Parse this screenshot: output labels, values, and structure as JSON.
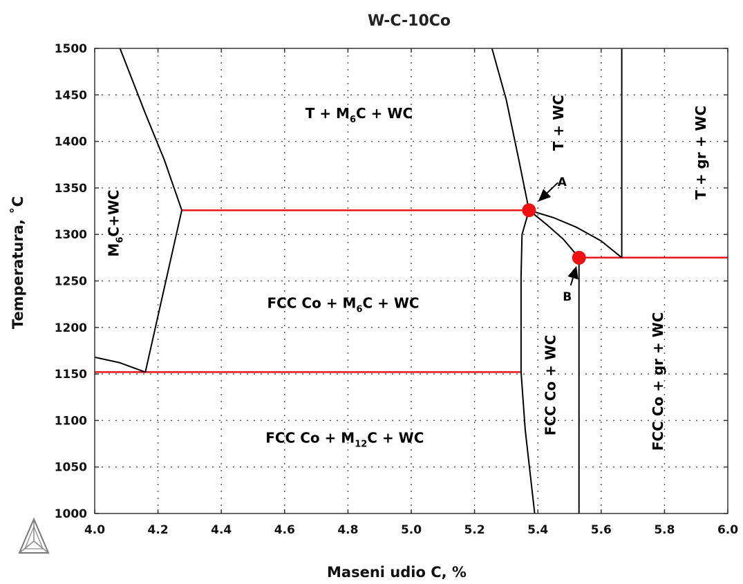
{
  "chart_data": {
    "type": "line",
    "title": "W-C-10Co",
    "xlabel": "Maseni udio C, %",
    "ylabel": "Temperatura, ˚C",
    "xlim": [
      4.0,
      6.0
    ],
    "ylim": [
      1000,
      1500
    ],
    "x_ticks": [
      "4.0",
      "4.2",
      "4.4",
      "4.6",
      "4.8",
      "5.0",
      "5.2",
      "5.4",
      "5.6",
      "5.8",
      "6.0"
    ],
    "y_ticks": [
      "1000",
      "1050",
      "1100",
      "1150",
      "1200",
      "1250",
      "1300",
      "1350",
      "1400",
      "1450",
      "1500"
    ],
    "grid": true,
    "colors": {
      "boundary": "#000000",
      "invariant": "#e8151b",
      "point": "#ee1111",
      "grid": "#555555"
    },
    "boundary_lines": [
      {
        "x": [
          4.08,
          4.16,
          4.22,
          4.275
        ],
        "y": [
          1500,
          1430,
          1380,
          1326
        ]
      },
      {
        "x": [
          4.275,
          4.16
        ],
        "y": [
          1326,
          1152
        ]
      },
      {
        "x": [
          4.0,
          4.08,
          4.16
        ],
        "y": [
          1168,
          1162,
          1152
        ]
      },
      {
        "x": [
          5.255,
          5.3,
          5.34,
          5.372
        ],
        "y": [
          1500,
          1445,
          1380,
          1326
        ]
      },
      {
        "x": [
          5.372,
          5.35,
          5.347,
          5.347
        ],
        "y": [
          1326,
          1300,
          1255,
          1152
        ]
      },
      {
        "x": [
          5.347,
          5.36,
          5.39
        ],
        "y": [
          1152,
          1090,
          1000
        ]
      },
      {
        "x": [
          5.372,
          5.43,
          5.48,
          5.53
        ],
        "y": [
          1326,
          1310,
          1295,
          1275
        ]
      },
      {
        "x": [
          5.372,
          5.45,
          5.52,
          5.6,
          5.665
        ],
        "y": [
          1326,
          1318,
          1308,
          1293,
          1275
        ]
      },
      {
        "x": [
          5.53,
          5.53
        ],
        "y": [
          1275,
          1000
        ]
      },
      {
        "x": [
          5.665,
          5.665
        ],
        "y": [
          1500,
          1275
        ]
      }
    ],
    "invariant_lines": [
      {
        "x": [
          4.275,
          5.372
        ],
        "y": [
          1326,
          1326
        ]
      },
      {
        "x": [
          4.0,
          5.347
        ],
        "y": [
          1152,
          1152
        ]
      },
      {
        "x": [
          5.53,
          6.0
        ],
        "y": [
          1275,
          1275
        ]
      }
    ],
    "points": [
      {
        "label": "A",
        "x": 5.372,
        "y": 1326
      },
      {
        "label": "B",
        "x": 5.53,
        "y": 1275
      }
    ],
    "regions": [
      {
        "label": "T + M",
        "sub": "6",
        "tail": "C + WC",
        "x": 4.835,
        "y": 1425,
        "rotate": false
      },
      {
        "label": "M",
        "sub": "6",
        "tail": "C+WC",
        "x": 4.075,
        "y": 1312,
        "rotate": true
      },
      {
        "label": "FCC Co + M",
        "sub": "6",
        "tail": "C + WC",
        "x": 4.785,
        "y": 1221,
        "rotate": false
      },
      {
        "label": "FCC Co + M",
        "sub": "12",
        "tail": "C + WC",
        "x": 4.79,
        "y": 1076,
        "rotate": false
      },
      {
        "label": "T + WC",
        "sub": "",
        "tail": "",
        "x": 5.48,
        "y": 1420,
        "rotate": true
      },
      {
        "label": "T + gr + WC",
        "sub": "",
        "tail": "",
        "x": 5.93,
        "y": 1388,
        "rotate": true
      },
      {
        "label": "FCC Co + WC",
        "sub": "",
        "tail": "",
        "x": 5.455,
        "y": 1138,
        "rotate": true
      },
      {
        "label": "FCC Co + gr + WC",
        "sub": "",
        "tail": "",
        "x": 5.795,
        "y": 1142,
        "rotate": true
      }
    ]
  }
}
